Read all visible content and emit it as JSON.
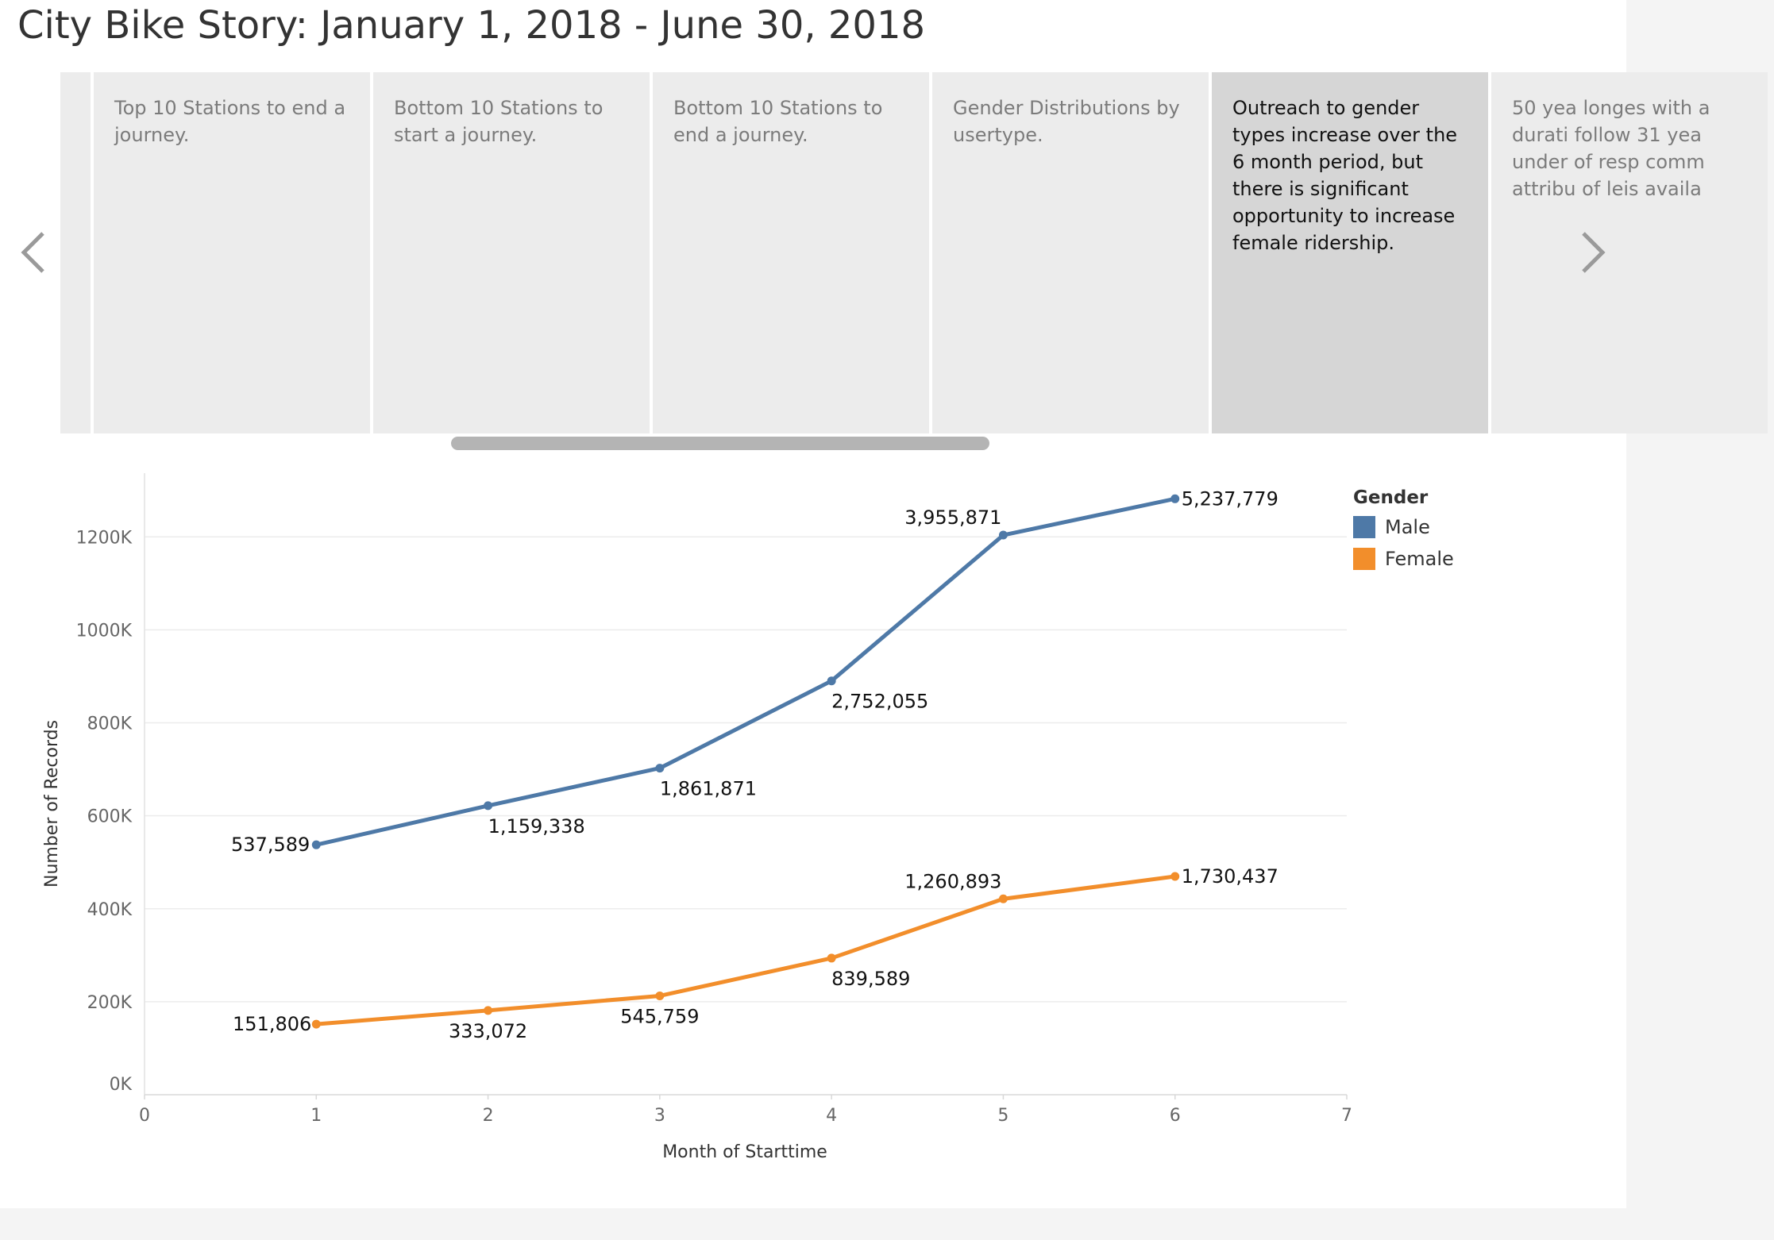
{
  "title": "City Bike Story: January 1, 2018 - June 30, 2018",
  "story_points": [
    {
      "text": "Top 10 Stations to end a journey.",
      "active": false
    },
    {
      "text": "Bottom 10 Stations to start a journey.",
      "active": false
    },
    {
      "text": "Bottom 10 Stations to end a journey.",
      "active": false
    },
    {
      "text": "Gender Distributions by usertype.",
      "active": false
    },
    {
      "text": "Outreach to gender types increase over the 6 month period, but there is significant opportunity to increase female ridership.",
      "active": true
    },
    {
      "text": "50 yea longes with a durati follow 31 yea under of resp comm attribu of leis availa",
      "active": false
    }
  ],
  "nav": {
    "prev_icon": "chevron-left-icon",
    "next_icon": "chevron-right-icon"
  },
  "legend": {
    "title": "Gender",
    "items": [
      {
        "label": "Male",
        "color": "#4e79a7"
      },
      {
        "label": "Female",
        "color": "#f28e2b"
      }
    ]
  },
  "chart_data": {
    "type": "line",
    "xlabel": "Month of Starttime",
    "ylabel": "Number of Records",
    "xlim": [
      0,
      7
    ],
    "ylim": [
      0,
      1320000
    ],
    "x_ticks": [
      0,
      1,
      2,
      3,
      4,
      5,
      6,
      7
    ],
    "y_ticks": [
      0,
      200000,
      400000,
      600000,
      800000,
      1000000,
      1200000
    ],
    "y_tick_labels": [
      "0K",
      "200K",
      "400K",
      "600K",
      "800K",
      "1000K",
      "1200K"
    ],
    "grid": true,
    "legend_position": "top-right",
    "series": [
      {
        "name": "Male",
        "color": "#4e79a7",
        "x": [
          1,
          2,
          3,
          4,
          5,
          6
        ],
        "y": [
          537589,
          621749,
          702533,
          890184,
          1203816,
          1281908
        ],
        "labels": [
          "537,589",
          "1,159,338",
          "1,861,871",
          "2,752,055",
          "3,955,871",
          "5,237,779"
        ]
      },
      {
        "name": "Female",
        "color": "#f28e2b",
        "x": [
          1,
          2,
          3,
          4,
          5,
          6
        ],
        "y": [
          151806,
          181266,
          212687,
          293830,
          421304,
          469544
        ],
        "labels": [
          "151,806",
          "333,072",
          "545,759",
          "839,589",
          "1,260,893",
          "1,730,437"
        ]
      }
    ]
  }
}
